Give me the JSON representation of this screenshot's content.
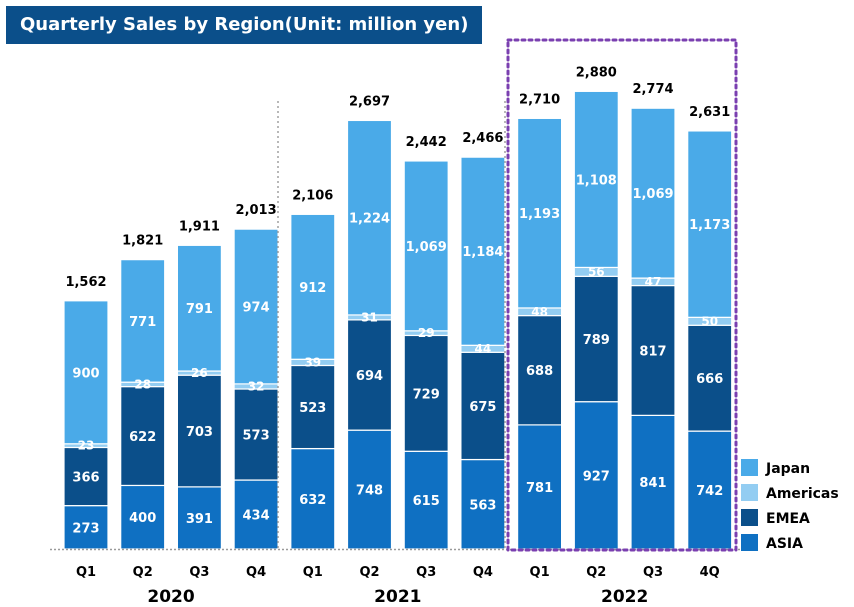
{
  "title": "Quarterly Sales by Region(Unit: million yen)",
  "colors": {
    "title_bg": "#0b4f8a",
    "ASIA": "#0f70c2",
    "EMEA": "#0b4f8a",
    "Americas": "#93cdf2",
    "Japan": "#4aaae8",
    "highlight_border": "#7a3fb0"
  },
  "chart_data": {
    "type": "bar",
    "stacked": true,
    "title": "Quarterly Sales by Region(Unit: million yen)",
    "categories": [
      "Q1",
      "Q2",
      "Q3",
      "Q4",
      "Q1",
      "Q2",
      "Q3",
      "Q4",
      "Q1",
      "Q2",
      "Q3",
      "4Q"
    ],
    "years": [
      {
        "label": "2020",
        "quarters": 4
      },
      {
        "label": "2021",
        "quarters": 4
      },
      {
        "label": "2022",
        "quarters": 4
      }
    ],
    "series": [
      {
        "name": "ASIA",
        "values": [
          273,
          400,
          391,
          434,
          632,
          748,
          615,
          563,
          781,
          927,
          841,
          742
        ]
      },
      {
        "name": "EMEA",
        "values": [
          366,
          622,
          703,
          573,
          523,
          694,
          729,
          675,
          688,
          789,
          817,
          666
        ]
      },
      {
        "name": "Americas",
        "values": [
          23,
          28,
          26,
          32,
          39,
          31,
          29,
          44,
          48,
          56,
          47,
          50
        ]
      },
      {
        "name": "Japan",
        "values": [
          900,
          771,
          791,
          974,
          912,
          1224,
          1069,
          1184,
          1193,
          1108,
          1069,
          1173
        ]
      }
    ],
    "totals": [
      "1,562",
      "1,821",
      "1,911",
      "2,013",
      "2,106",
      "2,697",
      "2,442",
      "2,466",
      "2,710",
      "2,880",
      "2,774",
      "2,631"
    ],
    "legend": [
      "Japan",
      "Americas",
      "EMEA",
      "ASIA"
    ],
    "legend_position": "bottom-right",
    "ylim": [
      0,
      2950
    ],
    "grid": false,
    "highlight_year": "2022"
  }
}
